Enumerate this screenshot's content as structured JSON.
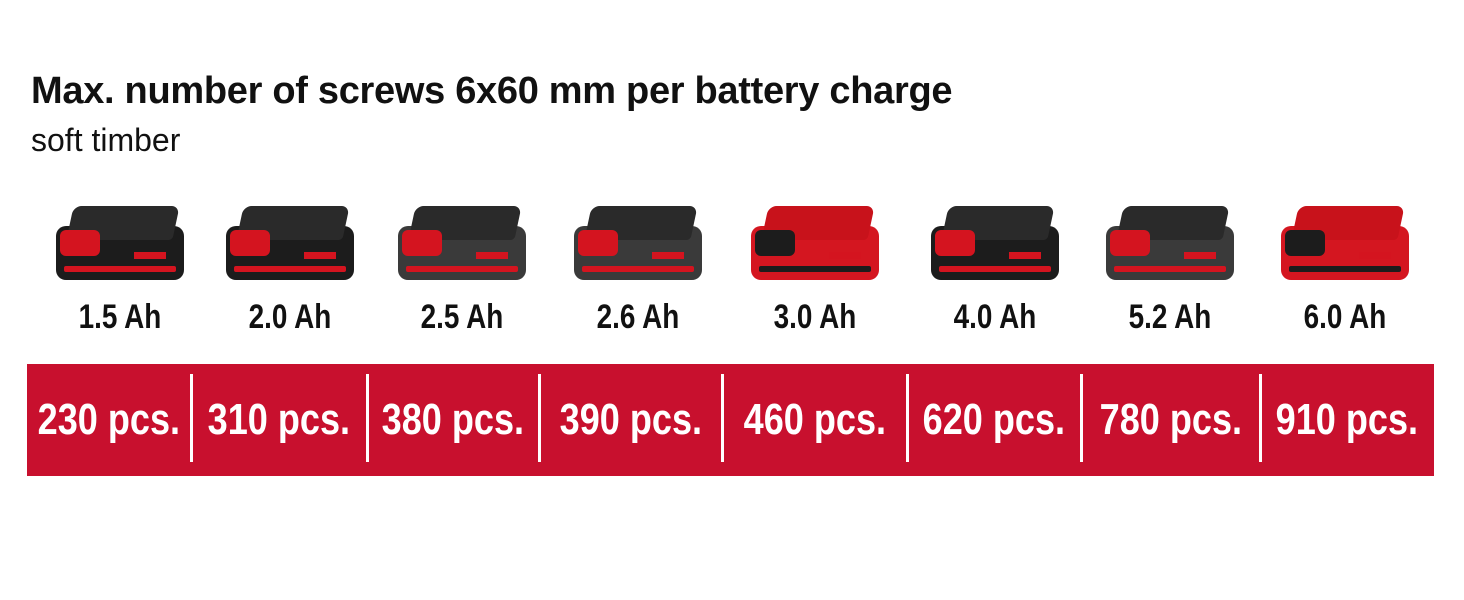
{
  "title": "Max. number of screws 6x60 mm per battery charge",
  "subtitle": "soft timber",
  "accent_color": "#c8102e",
  "batteries": [
    {
      "capacity": "1.5 Ah",
      "screws": "230 pcs.",
      "style": "black"
    },
    {
      "capacity": "2.0 Ah",
      "screws": "310 pcs.",
      "style": "black"
    },
    {
      "capacity": "2.5 Ah",
      "screws": "380 pcs.",
      "style": "grey"
    },
    {
      "capacity": "2.6 Ah",
      "screws": "390 pcs.",
      "style": "grey"
    },
    {
      "capacity": "3.0 Ah",
      "screws": "460 pcs.",
      "style": "red"
    },
    {
      "capacity": "4.0 Ah",
      "screws": "620 pcs.",
      "style": "black"
    },
    {
      "capacity": "5.2 Ah",
      "screws": "780 pcs.",
      "style": "grey"
    },
    {
      "capacity": "6.0 Ah",
      "screws": "910 pcs.",
      "style": "red"
    }
  ]
}
